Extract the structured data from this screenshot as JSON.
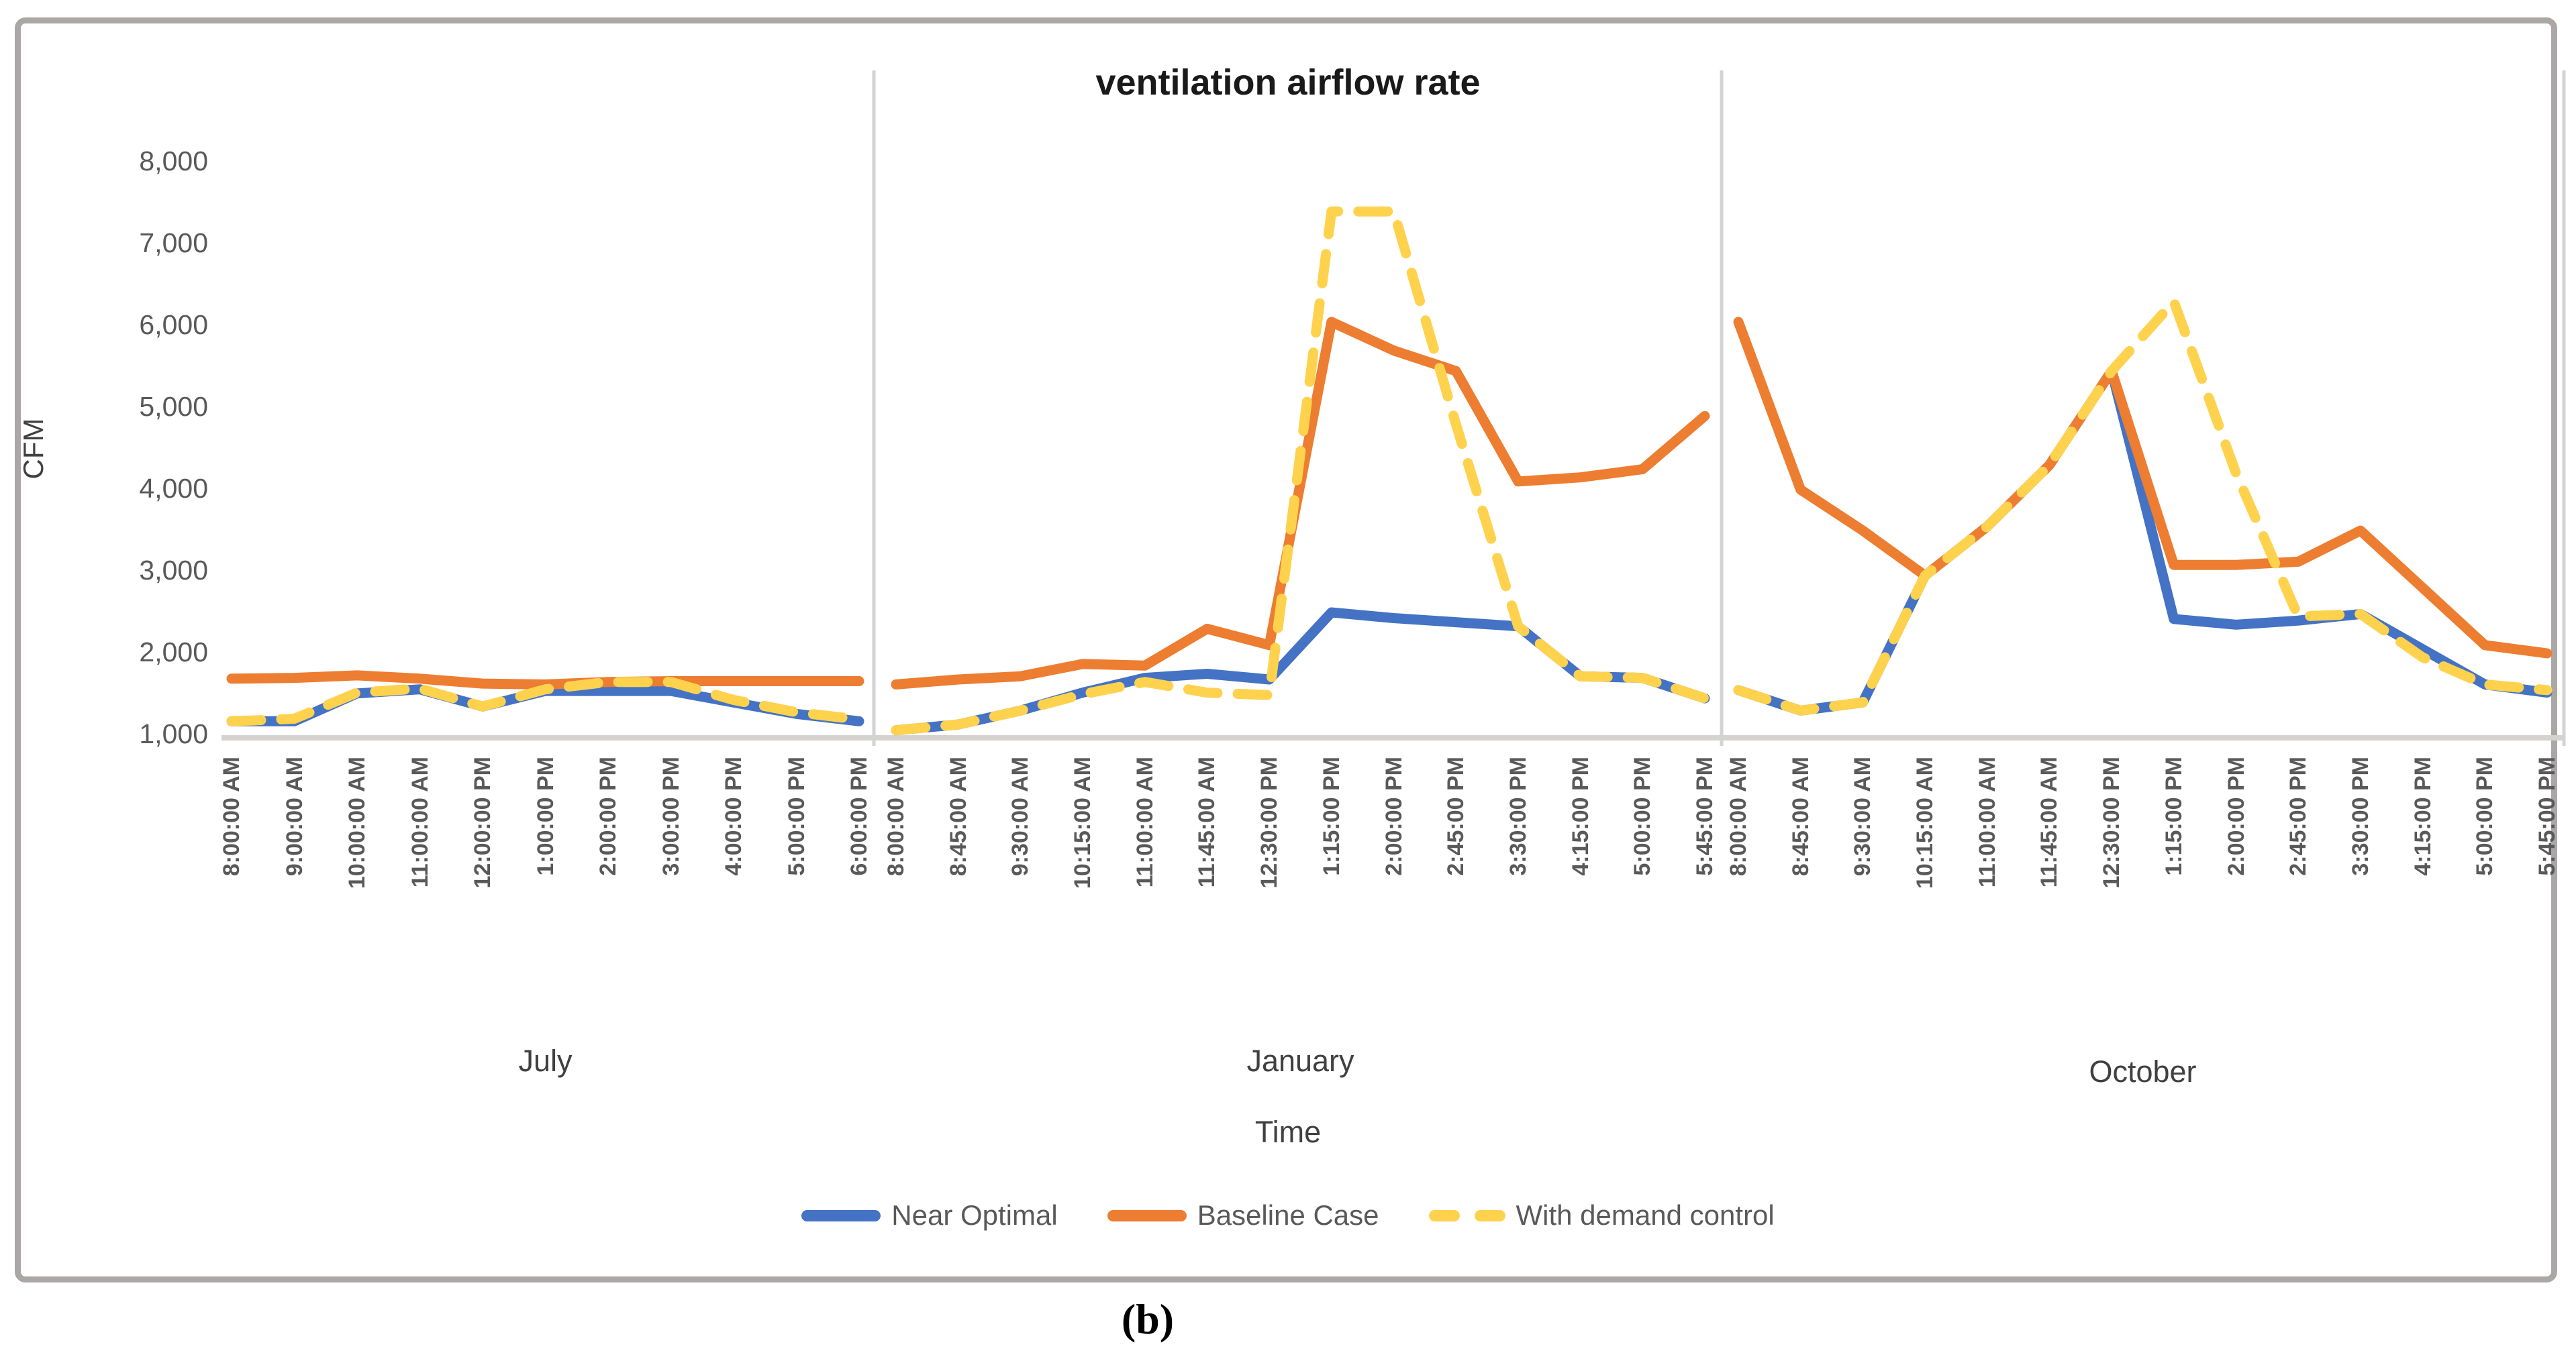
{
  "title": "ventilation airflow rate",
  "caption": "(b)",
  "axes": {
    "y_label": "CFM",
    "x_label": "Time"
  },
  "colors": {
    "near_optimal": "#4472C4",
    "baseline_case": "#ED7D31",
    "demand_control": "#FFD24E",
    "axis_line": "#d5d2d2",
    "tick_text": "#595959",
    "frame": "#aba7a7"
  },
  "legend": {
    "items": [
      {
        "label": "Near Optimal",
        "color": "#4472C4",
        "style": "solid"
      },
      {
        "label": "Baseline Case",
        "color": "#ED7D31",
        "style": "solid"
      },
      {
        "label": "With demand control",
        "color": "#FFD24E",
        "style": "dashed"
      }
    ]
  },
  "chart_data": {
    "type": "line",
    "title": "ventilation airflow rate",
    "xlabel": "Time",
    "ylabel": "CFM",
    "ylim": [
      1000,
      8000
    ],
    "grid": false,
    "legend_position": "bottom",
    "ytick_labels": [
      "8,000",
      "7,000",
      "6,000",
      "5,000",
      "4,000",
      "3,000",
      "2,000",
      "1,000"
    ],
    "ytick_values": [
      8000,
      7000,
      6000,
      5000,
      4000,
      3000,
      2000,
      1000
    ],
    "panels": [
      {
        "month": "July",
        "categories": [
          "8:00:00 AM",
          "9:00:00 AM",
          "10:00:00 AM",
          "11:00:00 AM",
          "12:00:00 PM",
          "1:00:00 PM",
          "2:00:00 PM",
          "3:00:00 PM",
          "4:00:00 PM",
          "5:00:00 PM",
          "6:00:00 PM"
        ],
        "series": [
          {
            "name": "Near Optimal",
            "color": "#4472C4",
            "dashed": false,
            "values": [
              1170,
              1170,
              1510,
              1560,
              1350,
              1540,
              1540,
              1540,
              1400,
              1260,
              1170
            ]
          },
          {
            "name": "Baseline Case",
            "color": "#ED7D31",
            "dashed": false,
            "values": [
              1690,
              1700,
              1730,
              1690,
              1630,
              1620,
              1650,
              1660,
              1660,
              1660,
              1660
            ]
          },
          {
            "name": "With demand control",
            "color": "#FFD24E",
            "dashed": true,
            "values": [
              1170,
              1200,
              1520,
              1570,
              1350,
              1560,
              1650,
              1650,
              1430,
              1280,
              1190
            ]
          }
        ]
      },
      {
        "month": "January",
        "categories": [
          "8:00:00 AM",
          "8:45:00 AM",
          "9:30:00 AM",
          "10:15:00 AM",
          "11:00:00 AM",
          "11:45:00 AM",
          "12:30:00 PM",
          "1:15:00 PM",
          "2:00:00 PM",
          "2:45:00 PM",
          "3:30:00 PM",
          "4:15:00 PM",
          "5:00:00 PM",
          "5:45:00 PM"
        ],
        "series": [
          {
            "name": "Near Optimal",
            "color": "#4472C4",
            "dashed": false,
            "values": [
              1060,
              1130,
              1300,
              1520,
              1700,
              1750,
              1680,
              2500,
              2430,
              2380,
              2330,
              1720,
              1700,
              1450
            ]
          },
          {
            "name": "Baseline Case",
            "color": "#ED7D31",
            "dashed": false,
            "values": [
              1620,
              1680,
              1720,
              1870,
              1850,
              2300,
              2100,
              6050,
              5700,
              5450,
              4100,
              4150,
              4250,
              4900
            ]
          },
          {
            "name": "With demand control",
            "color": "#FFD24E",
            "dashed": true,
            "values": [
              1060,
              1130,
              1300,
              1500,
              1650,
              1520,
              1490,
              7400,
              7400,
              4800,
              2330,
              1720,
              1700,
              1450
            ]
          }
        ]
      },
      {
        "month": "October",
        "categories": [
          "8:00:00 AM",
          "8:45:00 AM",
          "9:30:00 AM",
          "10:15:00 AM",
          "11:00:00 AM",
          "11:45:00 AM",
          "12:30:00 PM",
          "1:15:00 PM",
          "2:00:00 PM",
          "2:45:00 PM",
          "3:30:00 PM",
          "4:15:00 PM",
          "5:00:00 PM",
          "5:45:00 PM"
        ],
        "series": [
          {
            "name": "Near Optimal",
            "color": "#4472C4",
            "dashed": false,
            "values": [
              1550,
              1300,
              1400,
              2950,
              3550,
              4300,
              5450,
              2420,
              2350,
              2400,
              2480,
              2050,
              1620,
              1520
            ]
          },
          {
            "name": "Baseline Case",
            "color": "#ED7D31",
            "dashed": false,
            "values": [
              6050,
              4000,
              3500,
              2950,
              3550,
              4300,
              5450,
              3080,
              3080,
              3120,
              3500,
              2800,
              2100,
              2000
            ]
          },
          {
            "name": "With demand control",
            "color": "#FFD24E",
            "dashed": true,
            "values": [
              1550,
              1300,
              1400,
              2950,
              3550,
              4300,
              5450,
              6300,
              4200,
              2450,
              2480,
              1950,
              1620,
              1550
            ]
          }
        ]
      }
    ]
  }
}
